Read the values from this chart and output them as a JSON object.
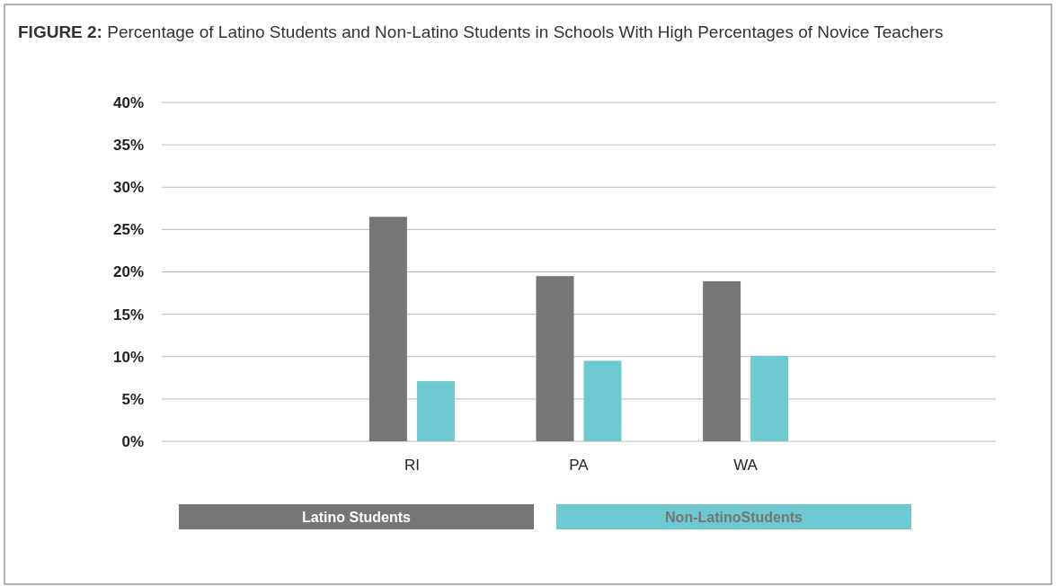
{
  "chart_data": {
    "type": "bar",
    "title": "FIGURE 2: Percentage of Latino Students and Non-Latino Students in Schools With High Percentages of Novice Teachers",
    "categories": [
      null,
      "RI",
      "PA",
      "WA",
      null
    ],
    "series": [
      {
        "name": "Latino Students",
        "color": "#767676",
        "values": [
          null,
          26.5,
          19.5,
          18.9,
          null
        ]
      },
      {
        "name": "Non-LatinoStudents",
        "color": "#6fc9d0",
        "values": [
          null,
          7.1,
          9.5,
          10.1,
          null
        ]
      }
    ],
    "ylim": [
      0,
      40
    ],
    "yticks": [
      {
        "value": 0,
        "label": "0%"
      },
      {
        "value": 5,
        "label": "5%"
      },
      {
        "value": 10,
        "label": "10%"
      },
      {
        "value": 15,
        "label": "15%"
      },
      {
        "value": 20,
        "label": "20%"
      },
      {
        "value": 25,
        "label": "25%"
      },
      {
        "value": 30,
        "label": "30%"
      },
      {
        "value": 35,
        "label": "35%"
      },
      {
        "value": 40,
        "label": "40%"
      }
    ],
    "grid": "y",
    "legend": "bottom"
  }
}
